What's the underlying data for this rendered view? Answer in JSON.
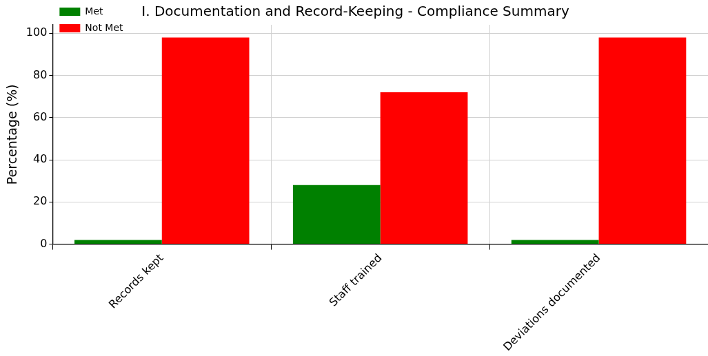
{
  "chart_data": {
    "type": "bar",
    "title": "I. Documentation and Record-Keeping - Compliance Summary",
    "ylabel": "Percentage (%)",
    "categories": [
      "Records kept",
      "Staff trained",
      "Deviations documented"
    ],
    "series": [
      {
        "name": "Met",
        "color": "#008000",
        "values": [
          2,
          28,
          2
        ]
      },
      {
        "name": "Not Met",
        "color": "#ff0000",
        "values": [
          98,
          72,
          98
        ]
      }
    ],
    "ylim": [
      0,
      104
    ],
    "yticks": [
      0,
      20,
      40,
      60,
      80,
      100
    ],
    "grid": true,
    "legend": "top left"
  }
}
